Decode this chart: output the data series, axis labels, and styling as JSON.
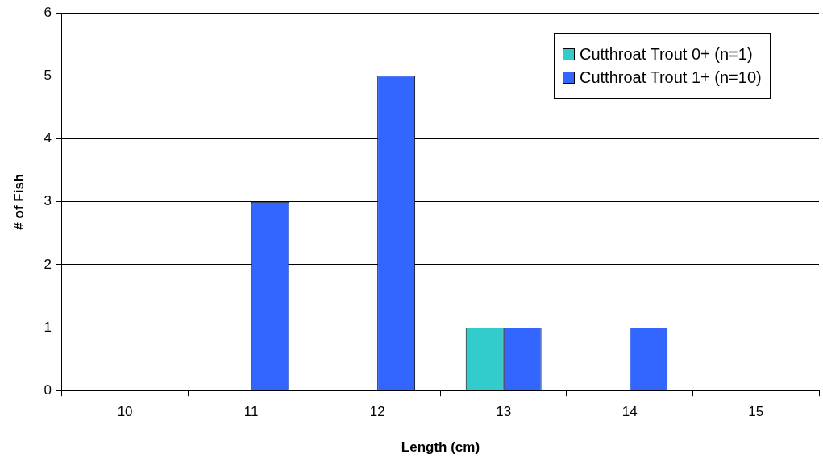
{
  "chart_data": {
    "type": "bar",
    "xlabel": "Length (cm)",
    "ylabel": "# of Fish",
    "categories": [
      "10",
      "11",
      "12",
      "13",
      "14",
      "15"
    ],
    "series": [
      {
        "name": "Cutthroat Trout 0+ (n=1)",
        "color": "#33cccc",
        "values": [
          0,
          0,
          0,
          1,
          0,
          0
        ]
      },
      {
        "name": "Cutthroat Trout 1+ (n=10)",
        "color": "#3366ff",
        "values": [
          0,
          3,
          5,
          1,
          1,
          0
        ]
      }
    ],
    "ylim": [
      0,
      6
    ],
    "yticks": [
      0,
      1,
      2,
      3,
      4,
      5,
      6
    ],
    "grid": "y",
    "legend": "top right"
  }
}
